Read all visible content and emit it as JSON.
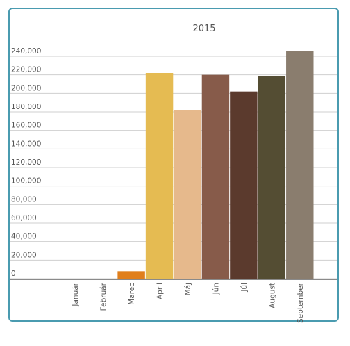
{
  "chart_data": {
    "type": "bar",
    "title": "2015",
    "xlabel": "",
    "ylabel": "",
    "categories": [
      "Január",
      "Február",
      "Marec",
      "April",
      "Máj",
      "Jún",
      "Júl",
      "August",
      "September"
    ],
    "values": [
      0,
      0,
      8000,
      222000,
      182000,
      220000,
      202000,
      219000,
      246000
    ],
    "colors": [
      "#e07f1c",
      "#e07f1c",
      "#e07f1c",
      "#e5bb52",
      "#e6b98c",
      "#875b4a",
      "#5b3a2d",
      "#544d33",
      "#8a7d6e"
    ],
    "ylim": [
      0,
      240000
    ],
    "yticks": [
      0,
      20000,
      40000,
      60000,
      80000,
      100000,
      120000,
      140000,
      160000,
      180000,
      200000,
      220000,
      240000
    ],
    "ytick_labels": [
      "0",
      "20,000",
      "40,000",
      "60,000",
      "80,000",
      "100,000",
      "120,000",
      "140,000",
      "160,000",
      "180,000",
      "200,000",
      "220,000",
      "240,000"
    ],
    "grid": true,
    "legend": "none"
  }
}
